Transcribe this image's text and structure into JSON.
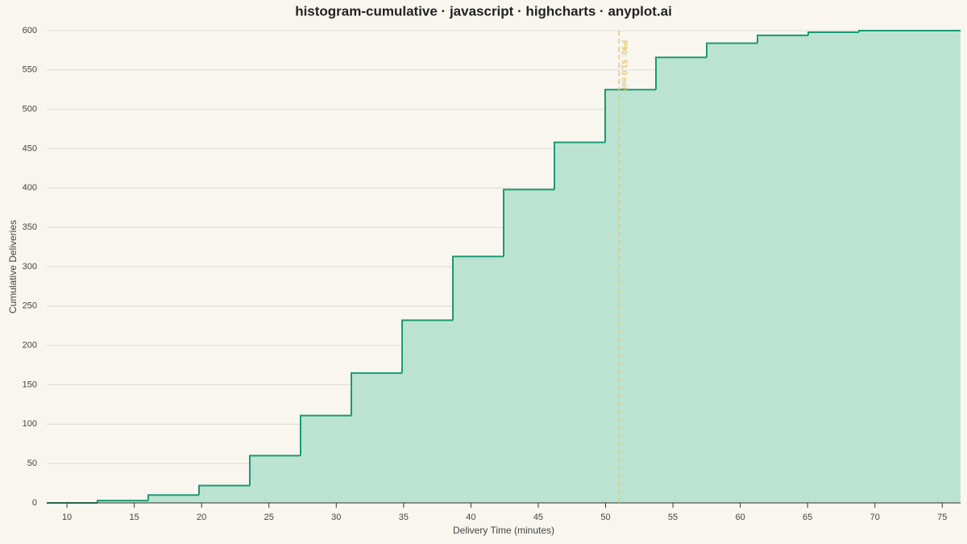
{
  "chart_data": {
    "type": "step-histogram",
    "title": "histogram-cumulative · javascript · highcharts · anyplot.ai",
    "x_label": "Delivery Time (minutes)",
    "y_label": "Cumulative Deliveries",
    "bins": [
      8.5,
      12.27,
      16.04,
      19.81,
      23.58,
      27.35,
      31.12,
      34.89,
      38.66,
      42.43,
      46.2,
      49.97,
      53.74,
      57.51,
      61.28,
      65.05,
      68.82,
      72.59,
      76.36
    ],
    "values": [
      0,
      3,
      10,
      22,
      60,
      111,
      165,
      232,
      313,
      398,
      458,
      525,
      566,
      584,
      594,
      598,
      600,
      600
    ],
    "color": "#1a9a72",
    "fill_color": "#bce3d2",
    "xlim": [
      8.5,
      76.36
    ],
    "ylim": [
      0,
      600
    ],
    "xticks": [
      10,
      15,
      20,
      25,
      30,
      35,
      40,
      45,
      50,
      55,
      60,
      65,
      70,
      75
    ],
    "yticks": [
      0,
      50,
      100,
      150,
      200,
      250,
      300,
      350,
      400,
      450,
      500,
      550,
      600
    ],
    "grid": true,
    "reference_line": {
      "x": 51.0,
      "label": "P90: 51.0 min",
      "color": "#e0c872"
    }
  }
}
